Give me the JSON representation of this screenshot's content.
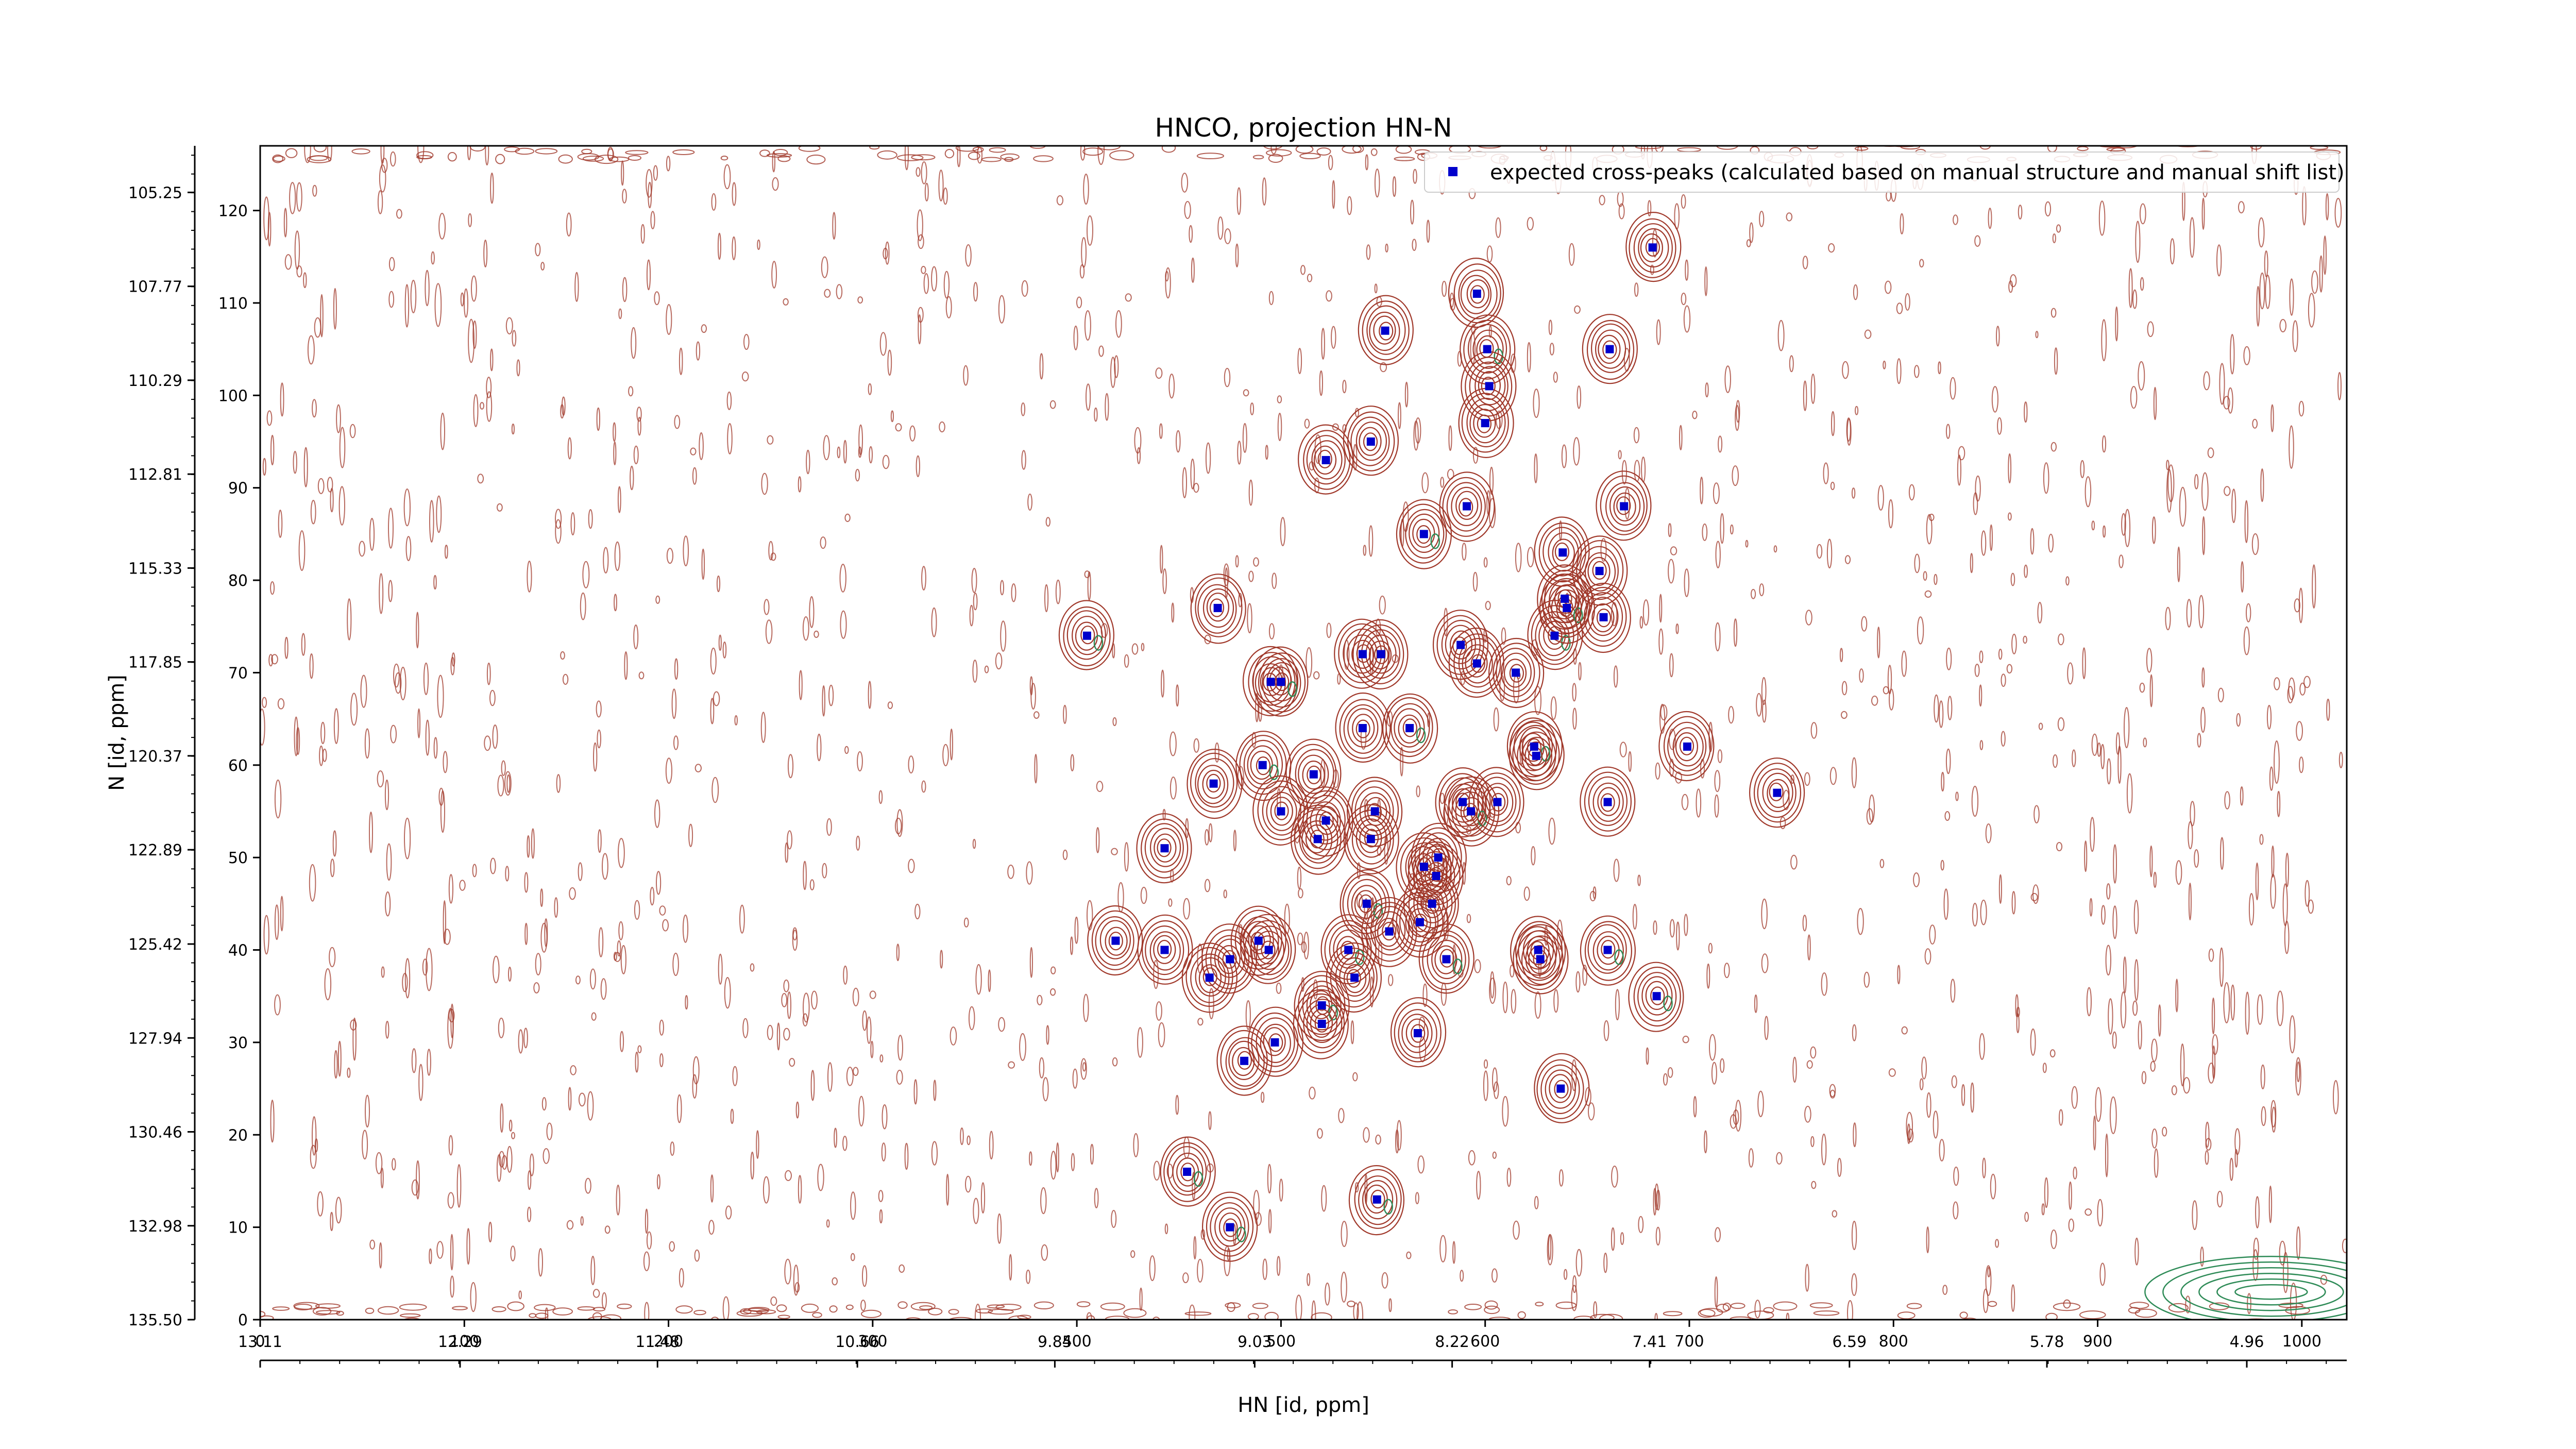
{
  "chart_data": {
    "type": "scatter",
    "title": "HNCO, projection HN-N",
    "xlabel": "HN [id, ppm]",
    "ylabel": "N [id, ppm]",
    "x_index_axis": {
      "range": [
        0,
        1022
      ],
      "ticks": [
        0,
        100,
        200,
        300,
        400,
        500,
        600,
        700,
        800,
        900,
        1000
      ],
      "tick_labels": [
        "0",
        "100",
        "200",
        "300",
        "400",
        "500",
        "600",
        "700",
        "800",
        "900",
        "1000"
      ]
    },
    "x_ppm_axis": {
      "range": [
        13.11,
        4.55
      ],
      "ticks": [
        13.11,
        12.29,
        11.48,
        10.66,
        9.85,
        9.03,
        8.22,
        7.41,
        6.59,
        5.78,
        4.96
      ],
      "tick_labels": [
        "13.11",
        "12.29",
        "11.48",
        "10.66",
        "9.85",
        "9.03",
        "8.22",
        "7.41",
        "6.59",
        "5.78",
        "4.96"
      ]
    },
    "y_index_axis": {
      "range": [
        0,
        127
      ],
      "ticks": [
        0,
        10,
        20,
        30,
        40,
        50,
        60,
        70,
        80,
        90,
        100,
        110,
        120
      ],
      "tick_labels": [
        "0",
        "10",
        "20",
        "30",
        "40",
        "50",
        "60",
        "70",
        "80",
        "90",
        "100",
        "110",
        "120"
      ]
    },
    "y_ppm_axis": {
      "range": [
        135.5,
        104.0
      ],
      "ticks": [
        135.5,
        132.98,
        130.46,
        127.94,
        125.42,
        122.89,
        120.37,
        117.85,
        115.33,
        112.81,
        110.29,
        107.77,
        105.25
      ],
      "tick_labels": [
        "135.50",
        "132.98",
        "130.46",
        "127.94",
        "125.42",
        "122.89",
        "120.37",
        "117.85",
        "115.33",
        "112.81",
        "110.29",
        "107.77",
        "105.25"
      ]
    },
    "legend": {
      "position": "top-right",
      "label": "expected cross-peaks (calculated based on manual structure and manual shift list)"
    },
    "colors": {
      "peaks": "#0000cc",
      "positive_contours": "#a0382a",
      "negative_contours": "#2e8b57"
    },
    "series": [
      {
        "name": "expected cross-peaks (calculated based on manual structure and manual shift list)",
        "x": [
          405,
          419,
          443,
          443,
          454,
          465,
          467,
          469,
          475,
          475,
          482,
          489,
          491,
          494,
          495,
          497,
          500,
          500,
          516,
          518,
          520,
          520,
          522,
          522,
          533,
          536,
          540,
          540,
          542,
          544,
          544,
          546,
          547,
          549,
          551,
          553,
          563,
          567,
          568,
          570,
          570,
          574,
          576,
          577,
          581,
          588,
          589,
          591,
          593,
          596,
          596,
          600,
          601,
          602,
          606,
          615,
          624,
          625,
          626,
          627,
          634,
          637,
          638,
          639,
          640,
          656,
          658,
          660,
          660,
          661,
          668,
          682,
          684,
          699,
          743
        ],
        "y": [
          74,
          41,
          51,
          40,
          16,
          37,
          58,
          77,
          10,
          39,
          28,
          41,
          60,
          40,
          69,
          30,
          69,
          55,
          59,
          52,
          34,
          32,
          93,
          54,
          40,
          37,
          72,
          64,
          45,
          95,
          52,
          55,
          13,
          72,
          107,
          42,
          64,
          31,
          43,
          49,
          85,
          45,
          48,
          50,
          39,
          73,
          56,
          88,
          55,
          71,
          111,
          97,
          105,
          101,
          56,
          70,
          62,
          61,
          40,
          39,
          74,
          25,
          83,
          78,
          77,
          81,
          76,
          56,
          40,
          105,
          88,
          116,
          35,
          62,
          57
        ]
      }
    ]
  }
}
